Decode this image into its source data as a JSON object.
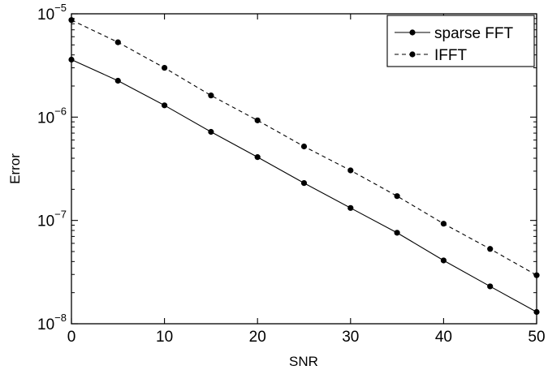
{
  "chart_data": {
    "type": "line",
    "xlabel": "SNR",
    "ylabel": "Error",
    "xlim": [
      0,
      50
    ],
    "ylim": [
      1e-08,
      1e-05
    ],
    "yscale": "log",
    "grid": false,
    "legend_position": "top-right",
    "x_ticks": [
      0,
      10,
      20,
      30,
      40,
      50
    ],
    "y_ticks": [
      {
        "value": 1e-08,
        "base": "10",
        "exponent": "−8"
      },
      {
        "value": 1e-07,
        "base": "10",
        "exponent": "−7"
      },
      {
        "value": 1e-06,
        "base": "10",
        "exponent": "−6"
      },
      {
        "value": 1e-05,
        "base": "10",
        "exponent": "−5"
      }
    ],
    "x": [
      0,
      5,
      10,
      15,
      20,
      25,
      30,
      35,
      40,
      45,
      50
    ],
    "series": [
      {
        "name": "sparse FFT",
        "style": "solid",
        "marker": "dot",
        "color": "#000000",
        "values": [
          3.6e-06,
          2.25e-06,
          1.3e-06,
          7.2e-07,
          4.1e-07,
          2.3e-07,
          1.32e-07,
          7.6e-08,
          4.1e-08,
          2.3e-08,
          1.3e-08
        ]
      },
      {
        "name": "IFFT",
        "style": "dashed",
        "marker": "dot",
        "color": "#000000",
        "values": [
          8.7e-06,
          5.3e-06,
          3e-06,
          1.62e-06,
          9.3e-07,
          5.2e-07,
          3.05e-07,
          1.72e-07,
          9.3e-08,
          5.3e-08,
          2.95e-08
        ]
      }
    ]
  }
}
